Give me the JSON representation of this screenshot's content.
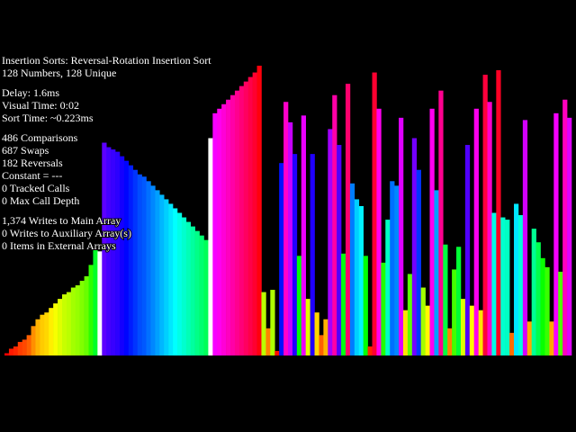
{
  "header": {
    "title": "Insertion Sorts: Reversal-Rotation Insertion Sort",
    "subtitle": "128 Numbers, 128 Unique"
  },
  "stats": [
    [
      "Delay: 1.6ms",
      "Visual Time: 0:02",
      "Sort Time: ~0.223ms"
    ],
    [
      "486 Comparisons",
      "687 Swaps",
      "182 Reversals",
      "Constant = ---",
      "0 Tracked Calls",
      "0 Max Call Depth"
    ],
    [
      "1,374 Writes to Main Array",
      "0 Writes to Auxiliary Array(s)",
      "0 Items in External Arrays"
    ]
  ],
  "array": {
    "color_scale": "hue",
    "highlight_color": "#ffffff",
    "highlighted": [
      21,
      46
    ],
    "values": [
      1,
      3,
      4,
      6,
      7,
      9,
      13,
      16,
      18,
      19,
      21,
      23,
      25,
      27,
      28,
      30,
      31,
      33,
      35,
      40,
      47,
      46,
      94,
      92,
      91,
      90,
      88,
      86,
      84,
      82,
      80,
      79,
      77,
      75,
      73,
      71,
      69,
      67,
      65,
      63,
      61,
      59,
      57,
      55,
      53,
      51,
      96,
      107,
      109,
      111,
      113,
      115,
      117,
      119,
      121,
      123,
      125,
      128,
      28,
      12,
      29,
      2,
      85,
      112,
      103,
      89,
      44,
      106,
      25,
      89,
      19,
      9,
      16,
      100,
      115,
      93,
      45,
      120,
      76,
      69,
      66,
      44,
      4,
      125,
      109,
      41,
      60,
      77,
      75,
      105,
      20,
      36,
      96,
      82,
      30,
      22,
      109,
      73,
      117,
      49,
      12,
      38,
      48,
      25,
      93,
      22,
      109,
      20,
      124,
      112,
      63,
      126,
      61,
      60,
      10,
      67,
      62,
      104,
      15,
      56,
      50,
      43,
      39,
      15,
      107,
      37,
      113,
      105
    ]
  }
}
